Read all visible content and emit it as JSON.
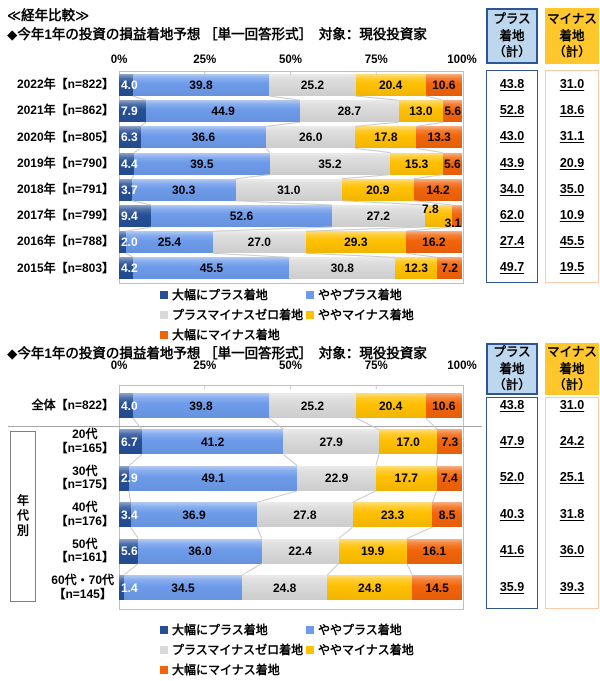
{
  "page": {
    "section_title": "≪経年比較≫"
  },
  "colors": {
    "segments": [
      "#264F96",
      "#6D9BEA",
      "#D9D9D9",
      "#FFC000",
      "#F2640A"
    ],
    "first_segment_text": "#FFFFFF",
    "segment_text": "#000000",
    "plus_header_bg": "#BDD7EE",
    "plus_border": "#2F5597",
    "minus_header_bg": "#FFC72C",
    "minus_border": "#F8CBAD",
    "grid": "#C9C9C9",
    "plot_border": "#BFBFBF"
  },
  "legend_items": [
    "大幅にプラス着地",
    "ややプラス着地",
    "プラスマイナスゼロ着地",
    "ややマイナス着地",
    "大幅にマイナス着地"
  ],
  "chart_data": [
    {
      "type": "bar",
      "stacked": true,
      "orientation": "horizontal",
      "title": "◆今年1年の投資の損益着地予想 ［単一回答形式］　対象：現役投資家",
      "xlim": [
        0,
        100
      ],
      "xticks": [
        "0%",
        "25%",
        "50%",
        "75%",
        "100%"
      ],
      "categories": [
        "2022年【n=822】",
        "2021年【n=862】",
        "2020年【n=805】",
        "2019年【n=790】",
        "2018年【n=791】",
        "2017年【n=799】",
        "2016年【n=788】",
        "2015年【n=803】"
      ],
      "series": [
        {
          "name": "大幅にプラス着地",
          "values": [
            4.0,
            7.9,
            6.3,
            4.4,
            3.7,
            9.4,
            2.0,
            4.2
          ]
        },
        {
          "name": "ややプラス着地",
          "values": [
            39.8,
            44.9,
            36.6,
            39.5,
            30.3,
            52.6,
            25.4,
            45.5
          ]
        },
        {
          "name": "プラスマイナスゼロ着地",
          "values": [
            25.2,
            28.7,
            26.0,
            35.2,
            31.0,
            27.2,
            27.0,
            30.8
          ]
        },
        {
          "name": "ややマイナス着地",
          "values": [
            20.4,
            13.0,
            17.8,
            15.3,
            20.9,
            7.8,
            29.3,
            12.3
          ]
        },
        {
          "name": "大幅にマイナス着地",
          "values": [
            10.6,
            5.6,
            13.3,
            5.6,
            14.2,
            3.1,
            16.2,
            7.2
          ]
        }
      ],
      "label_overrides": {
        "5": {
          "3": {
            "dx": -8,
            "dy": -7
          },
          "4": {
            "dx": -4,
            "dy": 7
          }
        }
      },
      "summary_columns": [
        {
          "header_lines": [
            "プラス",
            "着地",
            "（計）"
          ],
          "kind": "plus",
          "values": [
            "43.8",
            "52.8",
            "43.0",
            "43.9",
            "34.0",
            "62.0",
            "27.4",
            "49.7"
          ]
        },
        {
          "header_lines": [
            "マイナス",
            "着地",
            "（計）"
          ],
          "kind": "minus",
          "values": [
            "31.0",
            "18.6",
            "31.1",
            "20.9",
            "35.0",
            "10.9",
            "45.5",
            "19.5"
          ]
        }
      ]
    },
    {
      "type": "bar",
      "stacked": true,
      "orientation": "horizontal",
      "title": "◆今年1年の投資の損益着地予想 ［単一回答形式］　対象：現役投資家",
      "xlim": [
        0,
        100
      ],
      "xticks": [
        "0%",
        "25%",
        "50%",
        "75%",
        "100%"
      ],
      "categories": [
        [
          "全体【n=822】"
        ],
        [
          "20代",
          "【n=165】"
        ],
        [
          "30代",
          "【n=175】"
        ],
        [
          "40代",
          "【n=176】"
        ],
        [
          "50代",
          "【n=161】"
        ],
        [
          "60代・70代",
          "【n=145】"
        ]
      ],
      "group": {
        "label": "年代別",
        "start": 1,
        "end": 5
      },
      "series": [
        {
          "name": "大幅にプラス着地",
          "values": [
            4.0,
            6.7,
            2.9,
            3.4,
            5.6,
            1.4
          ]
        },
        {
          "name": "ややプラス着地",
          "values": [
            39.8,
            41.2,
            49.1,
            36.9,
            36.0,
            34.5
          ]
        },
        {
          "name": "プラスマイナスゼロ着地",
          "values": [
            25.2,
            27.9,
            22.9,
            27.8,
            22.4,
            24.8
          ]
        },
        {
          "name": "ややマイナス着地",
          "values": [
            20.4,
            17.0,
            17.7,
            23.3,
            19.9,
            24.8
          ]
        },
        {
          "name": "大幅にマイナス着地",
          "values": [
            10.6,
            7.3,
            7.4,
            8.5,
            16.1,
            14.5
          ]
        }
      ],
      "label_overrides": {},
      "summary_columns": [
        {
          "header_lines": [
            "プラス",
            "着地",
            "（計）"
          ],
          "kind": "plus",
          "values": [
            "43.8",
            "47.9",
            "52.0",
            "40.3",
            "41.6",
            "35.9"
          ]
        },
        {
          "header_lines": [
            "マイナス",
            "着地",
            "（計）"
          ],
          "kind": "minus",
          "values": [
            "31.0",
            "24.2",
            "25.1",
            "31.8",
            "36.0",
            "39.3"
          ]
        }
      ]
    }
  ]
}
